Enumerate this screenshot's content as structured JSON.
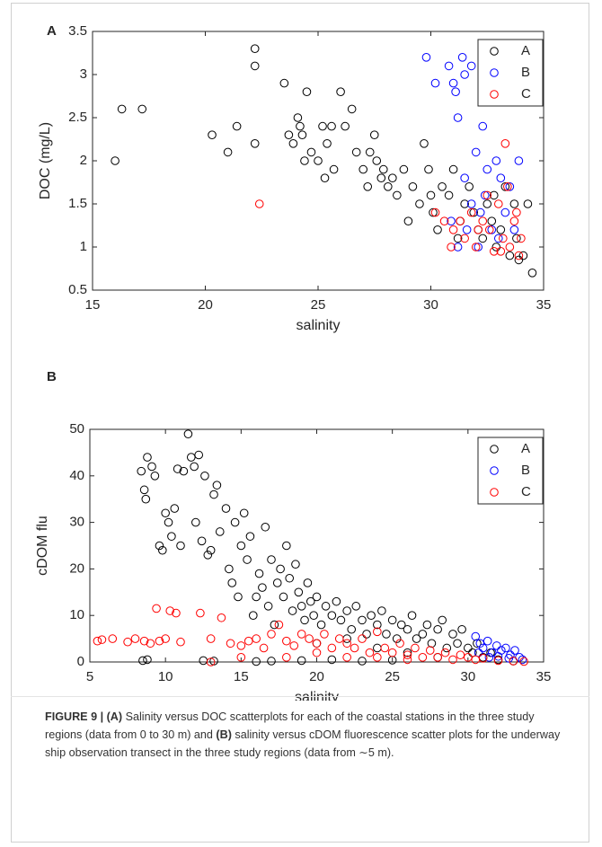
{
  "chart_data": [
    {
      "type": "scatter",
      "panel": "A",
      "xlabel": "salinity",
      "ylabel": "DOC (mg/L)",
      "xlim": [
        15,
        35
      ],
      "xticks": [
        15,
        20,
        25,
        30,
        35
      ],
      "ylim": [
        0.5,
        3.5
      ],
      "yticks": [
        0.5,
        1,
        1.5,
        2,
        2.5,
        3,
        3.5
      ],
      "legend": "upper right",
      "marker": "open-circle",
      "series": [
        {
          "name": "A",
          "color": "#000000",
          "x": [
            16,
            16.3,
            17.2,
            20.3,
            21,
            21.4,
            22.2,
            22.2,
            22.2,
            23.5,
            23.7,
            23.9,
            24.1,
            24.2,
            24.3,
            24.5,
            24.4,
            24.7,
            25,
            25.2,
            25.3,
            25.4,
            25.6,
            25.7,
            26,
            26.2,
            26.5,
            26.7,
            27,
            27.2,
            27.3,
            27.5,
            27.6,
            27.8,
            27.9,
            28.1,
            28.3,
            28.5,
            28.8,
            29,
            29.2,
            29.5,
            29.7,
            29.9,
            30,
            30.1,
            30.3,
            30.5,
            30.8,
            31,
            31.3,
            31.5,
            31.7,
            31.9,
            32.1,
            32.3,
            32.5,
            32.7,
            32.9,
            33.1,
            33.3,
            33.5,
            33.7,
            33.9,
            34.1,
            34.3,
            34.5,
            33.8,
            32.8,
            31.2
          ],
          "values": [
            2.0,
            2.6,
            2.6,
            2.3,
            2.1,
            2.4,
            3.3,
            3.1,
            2.2,
            2.9,
            2.3,
            2.2,
            2.5,
            2.4,
            2.3,
            2.8,
            2.0,
            2.1,
            2.0,
            2.4,
            1.8,
            2.2,
            2.4,
            1.9,
            2.8,
            2.4,
            2.6,
            2.1,
            1.9,
            1.7,
            2.1,
            2.3,
            2.0,
            1.8,
            1.9,
            1.7,
            1.8,
            1.6,
            1.9,
            1.3,
            1.7,
            1.5,
            2.2,
            1.9,
            1.6,
            1.4,
            1.2,
            1.7,
            1.6,
            1.9,
            1.3,
            1.5,
            1.7,
            1.4,
            1.2,
            1.1,
            1.5,
            1.3,
            1.0,
            1.2,
            1.7,
            0.9,
            1.5,
            0.85,
            0.9,
            1.5,
            0.7,
            1.1,
            1.6,
            1.1
          ]
        },
        {
          "name": "B",
          "color": "#0000ff",
          "x": [
            29.8,
            30.2,
            30.8,
            31.0,
            31.1,
            31.4,
            31.5,
            31.2,
            31.8,
            32.3,
            32.0,
            32.5,
            32.9,
            33.1,
            33.5,
            33.9,
            31.5,
            31.8,
            32.2,
            32.7,
            33.0,
            31.2,
            31.6,
            32.4,
            33.3,
            30.9,
            32.1,
            33.7
          ],
          "values": [
            3.2,
            2.9,
            3.1,
            2.9,
            2.8,
            3.2,
            3.0,
            2.5,
            3.1,
            2.4,
            2.1,
            1.9,
            2.0,
            1.8,
            1.7,
            2.0,
            1.8,
            1.5,
            1.4,
            1.2,
            1.1,
            1.0,
            1.2,
            1.6,
            1.4,
            1.3,
            1.0,
            1.2
          ]
        },
        {
          "name": "C",
          "color": "#ff0000",
          "x": [
            22.4,
            30.2,
            30.6,
            31.0,
            31.5,
            32.0,
            32.3,
            32.6,
            32.8,
            33.0,
            33.2,
            33.3,
            33.5,
            33.7,
            33.9,
            34.0,
            31.8,
            32.5,
            33.4,
            33.1,
            30.9,
            31.3,
            33.8,
            32.1
          ],
          "values": [
            1.5,
            1.4,
            1.3,
            1.2,
            1.1,
            1.0,
            1.3,
            1.2,
            0.95,
            1.5,
            1.1,
            2.2,
            1.0,
            1.3,
            0.9,
            1.1,
            1.4,
            1.6,
            1.7,
            0.95,
            1.0,
            1.3,
            1.4,
            1.2
          ]
        }
      ]
    },
    {
      "type": "scatter",
      "panel": "B",
      "xlabel": "salinity",
      "ylabel": "cDOM flu",
      "xlim": [
        5,
        35
      ],
      "xticks": [
        5,
        10,
        15,
        20,
        25,
        30,
        35
      ],
      "ylim": [
        0,
        50
      ],
      "yticks": [
        0,
        10,
        20,
        30,
        40,
        50
      ],
      "legend": "upper right",
      "marker": "open-circle",
      "series": [
        {
          "name": "A",
          "color": "#000000",
          "x": [
            8.5,
            8.8,
            8.4,
            8.6,
            8.7,
            8.8,
            9.1,
            9.3,
            9.6,
            9.8,
            10,
            10.2,
            10.4,
            10.6,
            10.8,
            11,
            11.2,
            11.5,
            11.7,
            11.9,
            12,
            12.2,
            12.4,
            12.6,
            12.8,
            13,
            13.2,
            13.4,
            13.6,
            12.5,
            13.2,
            14,
            14.2,
            14.4,
            14.6,
            14.8,
            15,
            15.2,
            15.4,
            15.6,
            15.8,
            16,
            16.2,
            16.4,
            16.6,
            16.8,
            17,
            17.2,
            17.4,
            17.6,
            17.8,
            18,
            18.2,
            18.4,
            18.6,
            18.8,
            19,
            19.2,
            19.4,
            19.6,
            19.8,
            20,
            20.3,
            20.6,
            21,
            21.3,
            21.6,
            22,
            22.3,
            22.6,
            23,
            23.3,
            23.6,
            24,
            24.3,
            24.6,
            25,
            25.3,
            25.6,
            26,
            26.3,
            26.6,
            27,
            27.3,
            27.6,
            28,
            28.3,
            28.6,
            29,
            29.3,
            29.6,
            30,
            30.3,
            30.6,
            31,
            31.5,
            32,
            33,
            17,
            19,
            21,
            23,
            25,
            16,
            20,
            22,
            24,
            26,
            28
          ],
          "values": [
            0.3,
            0.5,
            41,
            37,
            35,
            44,
            42,
            40,
            25,
            24,
            32,
            30,
            27,
            33,
            41.5,
            25,
            41,
            49,
            44,
            42,
            30,
            44.5,
            26,
            40,
            23,
            24,
            36,
            38,
            28,
            0.3,
            0.2,
            33,
            20,
            17,
            30,
            14,
            25,
            32,
            22,
            27,
            10,
            14,
            19,
            16,
            29,
            12,
            22,
            8,
            17,
            20,
            14,
            25,
            18,
            11,
            21,
            15,
            12,
            9,
            17,
            13,
            10,
            14,
            8,
            12,
            10,
            13,
            9,
            11,
            7,
            12,
            9,
            6,
            10,
            8,
            11,
            6,
            9,
            5,
            8,
            7,
            10,
            5,
            6,
            8,
            4,
            7,
            9,
            3,
            6,
            4,
            7,
            3,
            2,
            4,
            1,
            2,
            0.5,
            0.2,
            0.2,
            0.3,
            0.5,
            0.2,
            0.4,
            0.1,
            4,
            5,
            3,
            2,
            1
          ]
        },
        {
          "name": "B",
          "color": "#0000ff",
          "x": [
            30.5,
            30.8,
            31,
            31.3,
            31.6,
            31.9,
            32.2,
            32.5,
            32.8,
            33.1,
            33.4,
            33.6,
            31.4,
            32,
            32.7,
            30.7
          ],
          "values": [
            5.5,
            4,
            3,
            4.5,
            2,
            3.5,
            2.5,
            3,
            1.5,
            2.5,
            1,
            0.5,
            1,
            1.2,
            0.8,
            2
          ]
        },
        {
          "name": "C",
          "color": "#ff0000",
          "x": [
            5.5,
            5.8,
            6.5,
            7.5,
            8,
            8.6,
            9,
            9.4,
            9.6,
            10,
            10.3,
            10.7,
            11,
            12.3,
            13,
            13.7,
            14.3,
            15,
            15.5,
            16,
            16.5,
            17,
            17.5,
            18,
            18.5,
            19,
            19.5,
            20,
            20.5,
            21,
            21.5,
            22,
            22.5,
            23,
            23.5,
            24,
            24.5,
            25,
            25.5,
            26,
            26.5,
            27,
            27.5,
            28,
            28.5,
            29,
            29.5,
            30,
            30.5,
            31,
            32,
            33,
            33.7,
            18,
            20,
            22,
            24,
            26,
            15,
            13
          ],
          "values": [
            4.5,
            4.8,
            5,
            4.3,
            5,
            4.5,
            4,
            11.5,
            4.5,
            5,
            11,
            10.5,
            4.3,
            10.5,
            5,
            9.5,
            4,
            3.5,
            4.5,
            5,
            3,
            6,
            8,
            4.5,
            3.5,
            6,
            5,
            4,
            6,
            3,
            5,
            4,
            3,
            5,
            2,
            6.5,
            3,
            2,
            4,
            1.5,
            3,
            1,
            2.5,
            1,
            2,
            0.5,
            1.5,
            1,
            0.5,
            0.8,
            0.3,
            0.2,
            0.1,
            1,
            2,
            1,
            1,
            0.5,
            1,
            0
          ]
        }
      ]
    }
  ],
  "caption": {
    "label": "FIGURE 9 |",
    "part_a": "(A)",
    "text_a": "Salinity versus DOC scatterplots for each of the coastal stations in the three study regions (data from 0 to 30 m) and",
    "part_b": "(B)",
    "text_b": "salinity versus cDOM fluorescence scatter plots for the underway ship observation transect in the three study regions (data from ∼5 m)."
  }
}
